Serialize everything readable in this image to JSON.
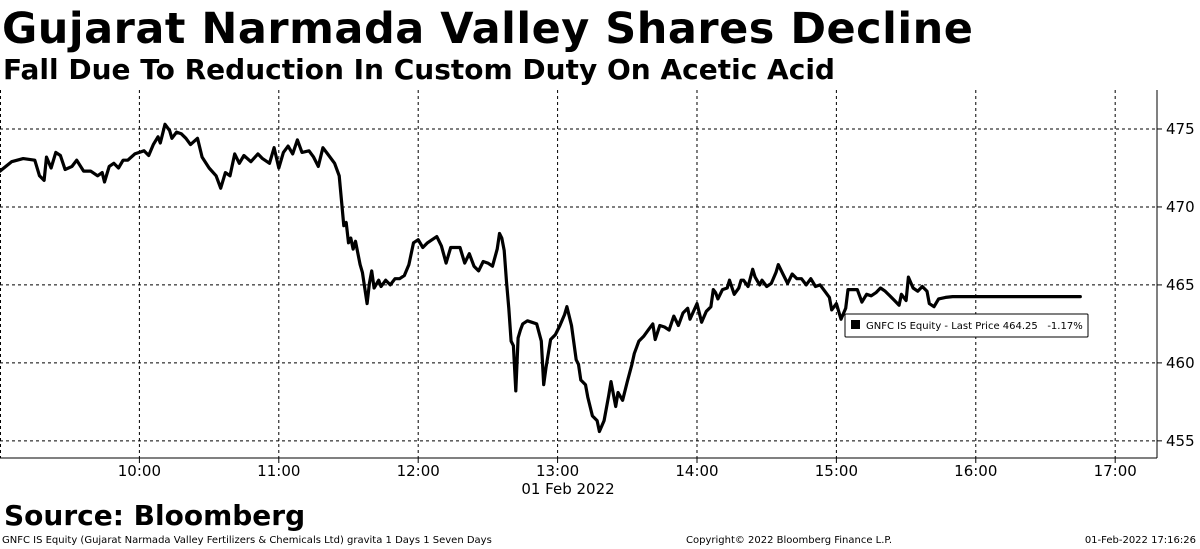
{
  "header": {
    "title": "Gujarat Narmada Valley Shares Decline",
    "subtitle": "Fall Due To Reduction In Custom Duty On Acetic Acid"
  },
  "source": "Source: Bloomberg",
  "footer": {
    "left": "GNFC IS Equity (Gujarat Narmada Valley Fertilizers & Chemicals Ltd) gravita 1 Days 1 Seven Days",
    "center": "Copyright© 2022 Bloomberg Finance L.P.",
    "right": "01-Feb-2022 17:16:26"
  },
  "legend": {
    "label": "GNFC IS Equity - Last Price 464.25   -1.17%",
    "swatch_color": "#000000"
  },
  "colors": {
    "line": "#000000",
    "grid": "#000000",
    "background": "#ffffff"
  },
  "chart_data": {
    "type": "line",
    "date_label": "01 Feb 2022",
    "x_axis": {
      "range": [
        9.0,
        17.3
      ],
      "ticks": [
        {
          "value": 10,
          "label": "10:00"
        },
        {
          "value": 11,
          "label": "11:00"
        },
        {
          "value": 12,
          "label": "12:00"
        },
        {
          "value": 13,
          "label": "13:00"
        },
        {
          "value": 14,
          "label": "14:00"
        },
        {
          "value": 15,
          "label": "15:00"
        },
        {
          "value": 16,
          "label": "16:00"
        },
        {
          "value": 17,
          "label": "17:00"
        }
      ]
    },
    "y_axis": {
      "range": [
        453.9,
        477.5
      ],
      "position": "right",
      "ticks": [
        455,
        460,
        465,
        470,
        475
      ]
    },
    "grid": true,
    "legend_position": "right, near last value",
    "series": [
      {
        "name": "GNFC IS Equity - Last Price",
        "last_value": 464.25,
        "change_pct": -1.17,
        "color": "#000000",
        "points": [
          [
            "09:00",
            472.3
          ],
          [
            "09:05",
            472.9
          ],
          [
            "09:10",
            473.1
          ],
          [
            "09:15",
            473.0
          ],
          [
            "09:17",
            472.0
          ],
          [
            "09:19",
            471.7
          ],
          [
            "09:20",
            473.2
          ],
          [
            "09:22",
            472.5
          ],
          [
            "09:24",
            473.5
          ],
          [
            "09:26",
            473.3
          ],
          [
            "09:28",
            472.4
          ],
          [
            "09:31",
            472.6
          ],
          [
            "09:33",
            473.0
          ],
          [
            "09:36",
            472.3
          ],
          [
            "09:39",
            472.3
          ],
          [
            "09:42",
            472.0
          ],
          [
            "09:44",
            472.2
          ],
          [
            "09:45",
            471.6
          ],
          [
            "09:47",
            472.6
          ],
          [
            "09:49",
            472.8
          ],
          [
            "09:51",
            472.5
          ],
          [
            "09:53",
            473.0
          ],
          [
            "09:55",
            473.0
          ],
          [
            "09:58",
            473.4
          ],
          [
            "10:02",
            473.6
          ],
          [
            "10:04",
            473.3
          ],
          [
            "10:06",
            474.0
          ],
          [
            "10:08",
            474.5
          ],
          [
            "10:09",
            474.1
          ],
          [
            "10:11",
            475.3
          ],
          [
            "10:13",
            474.9
          ],
          [
            "10:14",
            474.4
          ],
          [
            "10:16",
            474.8
          ],
          [
            "10:18",
            474.7
          ],
          [
            "10:20",
            474.4
          ],
          [
            "10:22",
            474.0
          ],
          [
            "10:25",
            474.4
          ],
          [
            "10:27",
            473.2
          ],
          [
            "10:30",
            472.5
          ],
          [
            "10:33",
            472.0
          ],
          [
            "10:35",
            471.2
          ],
          [
            "10:37",
            472.2
          ],
          [
            "10:39",
            472.0
          ],
          [
            "10:41",
            473.4
          ],
          [
            "10:43",
            472.8
          ],
          [
            "10:45",
            473.3
          ],
          [
            "10:48",
            472.9
          ],
          [
            "10:51",
            473.4
          ],
          [
            "10:53",
            473.1
          ],
          [
            "10:56",
            472.8
          ],
          [
            "10:58",
            473.8
          ],
          [
            "11:00",
            472.5
          ],
          [
            "11:02",
            473.5
          ],
          [
            "11:04",
            473.9
          ],
          [
            "11:06",
            473.4
          ],
          [
            "11:08",
            474.3
          ],
          [
            "11:10",
            473.5
          ],
          [
            "11:13",
            473.6
          ],
          [
            "11:15",
            473.2
          ],
          [
            "11:17",
            472.6
          ],
          [
            "11:19",
            473.8
          ],
          [
            "11:21",
            473.4
          ],
          [
            "11:24",
            472.8
          ],
          [
            "11:26",
            472.0
          ],
          [
            "11:27",
            470.4
          ],
          [
            "11:28",
            468.8
          ],
          [
            "11:29",
            469.0
          ],
          [
            "11:30",
            467.7
          ],
          [
            "11:31",
            468.0
          ],
          [
            "11:32",
            467.3
          ],
          [
            "11:33",
            467.8
          ],
          [
            "11:35",
            466.3
          ],
          [
            "11:36",
            465.8
          ],
          [
            "11:38",
            463.8
          ],
          [
            "11:39",
            465.1
          ],
          [
            "11:40",
            465.9
          ],
          [
            "11:41",
            464.8
          ],
          [
            "11:43",
            465.3
          ],
          [
            "11:44",
            464.9
          ],
          [
            "11:46",
            465.3
          ],
          [
            "11:48",
            465.0
          ],
          [
            "11:50",
            465.4
          ],
          [
            "11:52",
            465.4
          ],
          [
            "11:54",
            465.6
          ],
          [
            "11:56",
            466.3
          ],
          [
            "11:58",
            467.7
          ],
          [
            "12:00",
            467.9
          ],
          [
            "12:02",
            467.4
          ],
          [
            "12:04",
            467.7
          ],
          [
            "12:06",
            467.9
          ],
          [
            "12:08",
            468.1
          ],
          [
            "12:10",
            467.5
          ],
          [
            "12:12",
            466.4
          ],
          [
            "12:14",
            467.4
          ],
          [
            "12:16",
            467.4
          ],
          [
            "12:18",
            467.4
          ],
          [
            "12:20",
            466.4
          ],
          [
            "12:22",
            467.0
          ],
          [
            "12:24",
            466.2
          ],
          [
            "12:26",
            465.9
          ],
          [
            "12:28",
            466.5
          ],
          [
            "12:30",
            466.4
          ],
          [
            "12:32",
            466.2
          ],
          [
            "12:34",
            467.3
          ],
          [
            "12:35",
            468.3
          ],
          [
            "12:36",
            468.0
          ],
          [
            "12:37",
            467.2
          ],
          [
            "12:38",
            465.2
          ],
          [
            "12:39",
            463.5
          ],
          [
            "12:40",
            461.4
          ],
          [
            "12:41",
            461.1
          ],
          [
            "12:42",
            458.2
          ],
          [
            "12:43",
            461.6
          ],
          [
            "12:44",
            462.1
          ],
          [
            "12:45",
            462.5
          ],
          [
            "12:47",
            462.7
          ],
          [
            "12:49",
            462.6
          ],
          [
            "12:51",
            462.5
          ],
          [
            "12:53",
            461.4
          ],
          [
            "12:54",
            458.6
          ],
          [
            "12:55",
            459.7
          ],
          [
            "12:57",
            461.5
          ],
          [
            "12:59",
            461.8
          ],
          [
            "13:01",
            462.4
          ],
          [
            "13:03",
            463.1
          ],
          [
            "13:04",
            463.6
          ],
          [
            "13:06",
            462.4
          ],
          [
            "13:08",
            460.2
          ],
          [
            "13:09",
            459.9
          ],
          [
            "13:10",
            458.9
          ],
          [
            "13:12",
            458.6
          ],
          [
            "13:13",
            457.8
          ],
          [
            "13:15",
            456.6
          ],
          [
            "13:17",
            456.3
          ],
          [
            "13:18",
            455.6
          ],
          [
            "13:20",
            456.3
          ],
          [
            "13:22",
            457.9
          ],
          [
            "13:23",
            458.8
          ],
          [
            "13:25",
            457.2
          ],
          [
            "13:26",
            458.1
          ],
          [
            "13:28",
            457.6
          ],
          [
            "13:30",
            458.8
          ],
          [
            "13:32",
            459.9
          ],
          [
            "13:33",
            460.6
          ],
          [
            "13:35",
            461.4
          ],
          [
            "13:37",
            461.7
          ],
          [
            "13:39",
            462.1
          ],
          [
            "13:41",
            462.5
          ],
          [
            "13:42",
            461.5
          ],
          [
            "13:44",
            462.4
          ],
          [
            "13:46",
            462.3
          ],
          [
            "13:48",
            462.1
          ],
          [
            "13:50",
            463.0
          ],
          [
            "13:52",
            462.4
          ],
          [
            "13:54",
            463.2
          ],
          [
            "13:56",
            463.5
          ],
          [
            "13:57",
            462.8
          ],
          [
            "14:00",
            463.8
          ],
          [
            "14:02",
            462.6
          ],
          [
            "14:04",
            463.3
          ],
          [
            "14:06",
            463.6
          ],
          [
            "14:07",
            464.7
          ],
          [
            "14:08",
            464.5
          ],
          [
            "14:09",
            464.1
          ],
          [
            "14:11",
            464.7
          ],
          [
            "14:13",
            464.8
          ],
          [
            "14:14",
            465.3
          ],
          [
            "14:16",
            464.4
          ],
          [
            "14:18",
            464.8
          ],
          [
            "14:19",
            465.3
          ],
          [
            "14:20",
            465.3
          ],
          [
            "14:22",
            464.9
          ],
          [
            "14:24",
            466.0
          ],
          [
            "14:25",
            465.5
          ],
          [
            "14:27",
            465.0
          ],
          [
            "14:28",
            465.3
          ],
          [
            "14:30",
            464.9
          ],
          [
            "14:32",
            465.1
          ],
          [
            "14:34",
            465.8
          ],
          [
            "14:35",
            466.3
          ],
          [
            "14:37",
            465.7
          ],
          [
            "14:39",
            465.1
          ],
          [
            "14:41",
            465.7
          ],
          [
            "14:43",
            465.4
          ],
          [
            "14:45",
            465.4
          ],
          [
            "14:47",
            465.0
          ],
          [
            "14:49",
            465.4
          ],
          [
            "14:51",
            464.9
          ],
          [
            "14:53",
            465.0
          ],
          [
            "14:55",
            464.6
          ],
          [
            "14:57",
            464.2
          ],
          [
            "14:58",
            463.4
          ],
          [
            "15:00",
            463.8
          ],
          [
            "15:02",
            462.8
          ],
          [
            "15:04",
            463.5
          ],
          [
            "15:05",
            464.7
          ],
          [
            "15:07",
            464.7
          ],
          [
            "15:09",
            464.7
          ],
          [
            "15:11",
            463.9
          ],
          [
            "15:13",
            464.4
          ],
          [
            "15:15",
            464.3
          ],
          [
            "15:17",
            464.5
          ],
          [
            "15:19",
            464.8
          ],
          [
            "15:21",
            464.6
          ],
          [
            "15:23",
            464.3
          ],
          [
            "15:25",
            464.0
          ],
          [
            "15:27",
            463.7
          ],
          [
            "15:28",
            464.4
          ],
          [
            "15:30",
            464.0
          ],
          [
            "15:31",
            465.5
          ],
          [
            "15:33",
            464.8
          ],
          [
            "15:35",
            464.6
          ],
          [
            "15:37",
            464.9
          ],
          [
            "15:39",
            464.6
          ],
          [
            "15:40",
            463.8
          ],
          [
            "15:42",
            463.6
          ],
          [
            "15:44",
            464.1
          ],
          [
            "15:47",
            464.2
          ],
          [
            "15:50",
            464.25
          ],
          [
            "16:20",
            464.25
          ],
          [
            "16:45",
            464.25
          ]
        ]
      }
    ]
  }
}
